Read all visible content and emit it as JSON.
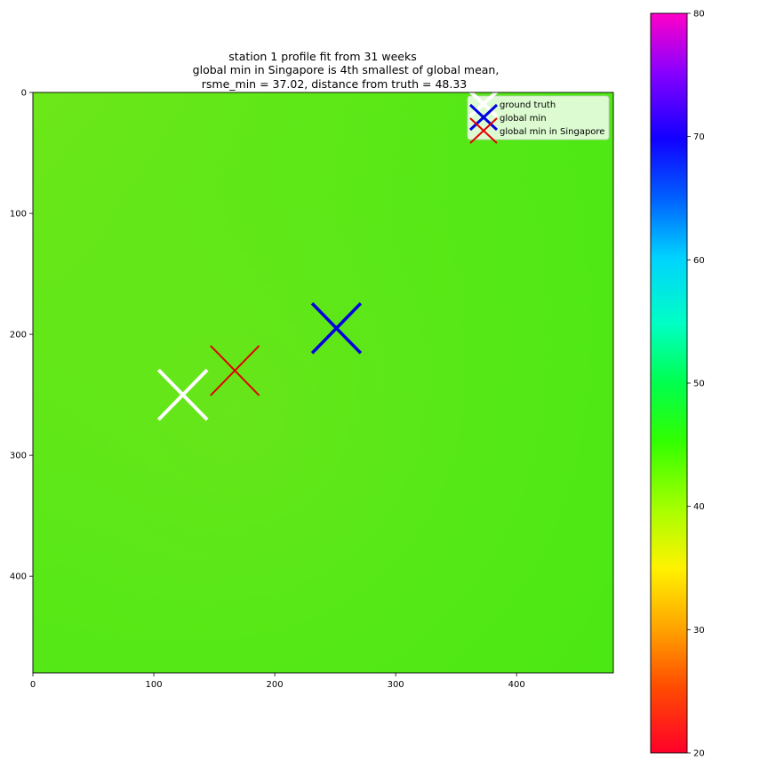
{
  "chart_data": {
    "type": "heatmap",
    "title_lines": [
      "station 1 profile fit from 31 weeks",
      "global min in Singapore is 4th smallest of global mean,",
      "rsme_min = 37.02, distance from truth = 48.33"
    ],
    "xlabel": "",
    "ylabel": "",
    "xlim": [
      0,
      480
    ],
    "ylim": [
      480,
      0
    ],
    "xticks": [
      0,
      100,
      200,
      300,
      400
    ],
    "yticks": [
      0,
      100,
      200,
      300,
      400
    ],
    "field_value_approx": 41,
    "grid": false,
    "colorbar": {
      "range": [
        20,
        80
      ],
      "ticks": [
        20,
        30,
        40,
        50,
        60,
        70,
        80
      ],
      "colormap": "gist_rainbow"
    },
    "markers": [
      {
        "name": "ground truth",
        "x": 124,
        "y": 250,
        "color": "#ffffff"
      },
      {
        "name": "global min",
        "x": 251,
        "y": 195,
        "color": "#0000e0"
      },
      {
        "name": "global min in Singapore",
        "x": 167,
        "y": 230,
        "color": "#e00000"
      }
    ],
    "legend": {
      "placement": "top-right",
      "entries": [
        "ground truth",
        "global min",
        "global min in Singapore"
      ]
    }
  }
}
